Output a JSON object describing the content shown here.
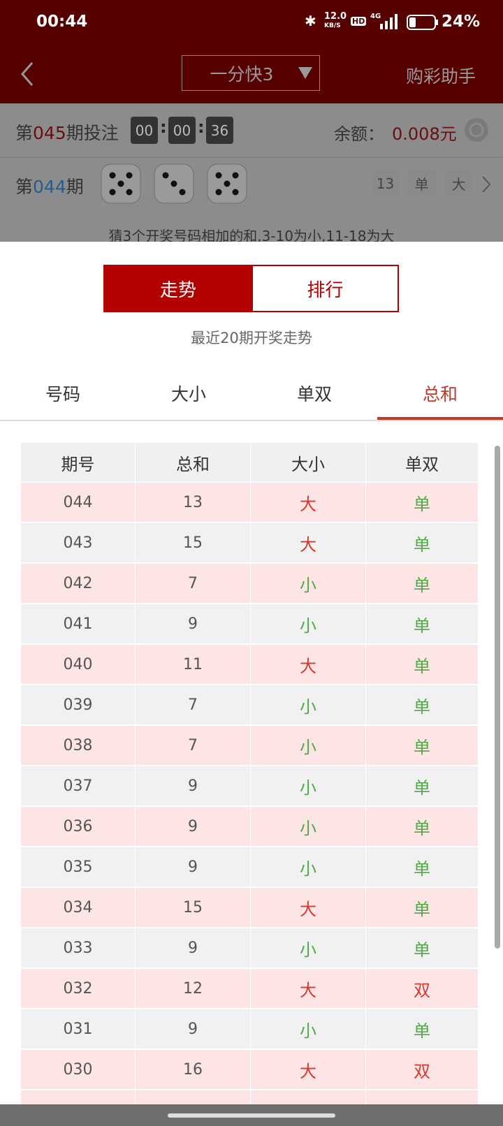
{
  "status_bar": {
    "time": "00:44",
    "speed": "12.0",
    "speed_unit": "KB/S",
    "hd": "HD",
    "network": "4G",
    "battery": "24%"
  },
  "nav": {
    "title": "一分快3",
    "helper": "购彩助手"
  },
  "current": {
    "prefix": "第",
    "issue": "045",
    "suffix": "期投注",
    "countdown": [
      "00",
      "00",
      "36"
    ],
    "balance_label": "余额：",
    "balance": "0.008元"
  },
  "last": {
    "prefix": "第",
    "issue": "044",
    "suffix": "期",
    "dice": [
      5,
      3,
      5
    ],
    "badges": [
      "13",
      "单",
      "大"
    ]
  },
  "rule": "猜3个开奖号码相加的和,3-10为小,11-18为大",
  "segments": [
    "走势",
    "排行"
  ],
  "subtitle": "最近20期开奖走势",
  "tabs": [
    "号码",
    "大小",
    "单双",
    "总和"
  ],
  "table": {
    "header": [
      "期号",
      "总和",
      "大小",
      "单双"
    ],
    "rows": [
      [
        "044",
        "13",
        "大",
        "单"
      ],
      [
        "043",
        "15",
        "大",
        "单"
      ],
      [
        "042",
        "7",
        "小",
        "单"
      ],
      [
        "041",
        "9",
        "小",
        "单"
      ],
      [
        "040",
        "11",
        "大",
        "单"
      ],
      [
        "039",
        "7",
        "小",
        "单"
      ],
      [
        "038",
        "7",
        "小",
        "单"
      ],
      [
        "037",
        "9",
        "小",
        "单"
      ],
      [
        "036",
        "9",
        "小",
        "单"
      ],
      [
        "035",
        "9",
        "小",
        "单"
      ],
      [
        "034",
        "15",
        "大",
        "单"
      ],
      [
        "033",
        "9",
        "小",
        "单"
      ],
      [
        "032",
        "12",
        "大",
        "双"
      ],
      [
        "031",
        "9",
        "小",
        "单"
      ],
      [
        "030",
        "16",
        "大",
        "双"
      ]
    ],
    "row_colors": [
      [
        "#d6392b",
        "#4fa845"
      ],
      [
        "#d6392b",
        "#4fa845"
      ],
      [
        "#4fa845",
        "#4fa845"
      ],
      [
        "#4fa845",
        "#4fa845"
      ],
      [
        "#d6392b",
        "#4fa845"
      ],
      [
        "#4fa845",
        "#4fa845"
      ],
      [
        "#4fa845",
        "#4fa845"
      ],
      [
        "#4fa845",
        "#4fa845"
      ],
      [
        "#4fa845",
        "#4fa845"
      ],
      [
        "#4fa845",
        "#4fa845"
      ],
      [
        "#d6392b",
        "#4fa845"
      ],
      [
        "#4fa845",
        "#4fa845"
      ],
      [
        "#d6392b",
        "#d6392b"
      ],
      [
        "#4fa845",
        "#4fa845"
      ],
      [
        "#d6392b",
        "#d6392b"
      ]
    ]
  }
}
